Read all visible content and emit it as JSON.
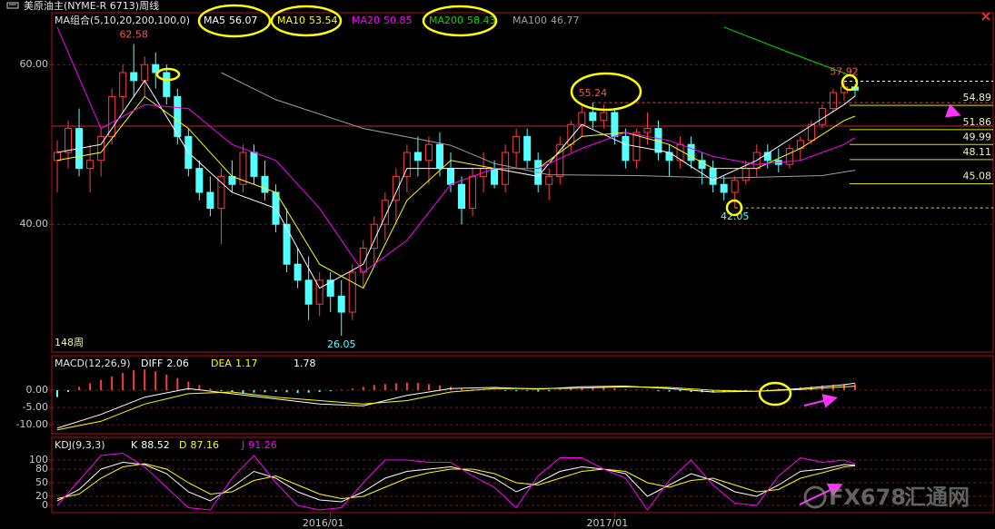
{
  "header": {
    "title": "美原油主(NYME-R 6713)周线"
  },
  "watermark": [
    "FX678",
    "汇通网"
  ],
  "chart_data": [
    {
      "type": "candlestick",
      "legend_title": "MA组合(5,10,20,200,100,0)",
      "period_label": "148周",
      "up_color": "#ff3c3c",
      "down_color": "#54ffff",
      "grid": true,
      "xlim": [
        -0.5,
        73.5
      ],
      "xticks": [
        {
          "value": 25,
          "label": "2016/01"
        },
        {
          "value": 51,
          "label": "2017/01"
        }
      ],
      "ylim": [
        24,
        66.5
      ],
      "yticks": [
        {
          "value": 60,
          "label": "60.00"
        },
        {
          "value": 40,
          "label": "40.00"
        }
      ],
      "candles": [
        [
          48,
          50.5,
          44,
          49
        ],
        [
          49,
          53,
          47,
          52
        ],
        [
          52,
          54.5,
          46,
          47
        ],
        [
          47,
          50,
          44,
          48
        ],
        [
          48,
          52,
          46,
          51
        ],
        [
          51,
          57,
          50,
          56
        ],
        [
          56,
          60,
          54,
          59
        ],
        [
          59,
          62.58,
          56,
          58
        ],
        [
          58,
          61,
          56,
          60
        ],
        [
          60,
          61.5,
          57,
          59
        ],
        [
          59,
          60,
          55,
          56
        ],
        [
          56,
          57,
          50,
          51
        ],
        [
          51,
          52,
          46,
          47
        ],
        [
          47,
          48,
          43,
          44
        ],
        [
          44,
          46,
          41,
          42
        ],
        [
          42,
          47,
          37.5,
          46
        ],
        [
          46,
          48,
          44,
          45
        ],
        [
          45,
          50,
          44,
          49
        ],
        [
          49,
          50,
          45,
          46
        ],
        [
          46,
          48,
          43,
          44
        ],
        [
          44,
          45,
          39,
          40
        ],
        [
          40,
          42,
          34,
          35
        ],
        [
          35,
          37,
          32,
          33
        ],
        [
          33,
          36,
          28,
          30
        ],
        [
          30,
          34,
          28.5,
          33
        ],
        [
          33,
          34,
          29,
          31
        ],
        [
          31,
          33,
          26.05,
          29
        ],
        [
          29,
          35,
          28,
          34
        ],
        [
          34,
          38,
          32,
          37
        ],
        [
          37,
          41,
          35,
          40
        ],
        [
          40,
          44,
          38,
          43
        ],
        [
          43,
          47,
          40,
          46
        ],
        [
          46,
          50,
          44,
          49
        ],
        [
          49,
          51,
          46,
          48
        ],
        [
          48,
          51,
          45,
          50
        ],
        [
          50,
          51.5,
          46,
          47
        ],
        [
          47,
          49,
          44,
          45
        ],
        [
          45,
          46,
          40,
          42
        ],
        [
          42,
          47,
          41,
          46
        ],
        [
          46,
          49,
          44,
          47
        ],
        [
          47,
          48,
          44.5,
          45
        ],
        [
          45,
          50,
          44,
          49
        ],
        [
          49,
          52,
          47,
          51
        ],
        [
          51,
          52,
          47,
          48
        ],
        [
          48,
          49,
          44,
          45
        ],
        [
          45,
          47,
          43,
          46
        ],
        [
          46,
          51,
          45,
          50
        ],
        [
          50,
          53,
          49,
          52.5
        ],
        [
          52.5,
          55,
          51,
          54
        ],
        [
          54,
          55.24,
          52,
          53
        ],
        [
          53,
          55,
          52,
          54
        ],
        [
          54,
          54.5,
          50,
          51
        ],
        [
          51,
          52,
          47,
          48
        ],
        [
          48,
          52,
          47,
          51.5
        ],
        [
          51.5,
          54,
          50,
          52
        ],
        [
          52,
          53,
          48,
          49
        ],
        [
          49,
          50,
          46,
          48
        ],
        [
          48,
          51,
          47,
          50
        ],
        [
          50,
          51,
          47,
          48
        ],
        [
          48,
          49,
          45,
          47
        ],
        [
          47,
          48,
          44,
          45
        ],
        [
          45,
          46,
          43,
          44
        ],
        [
          44,
          46,
          42.05,
          45.5
        ],
        [
          45.5,
          48,
          45,
          47
        ],
        [
          47,
          50,
          46,
          49
        ],
        [
          49,
          50,
          47,
          48
        ],
        [
          48,
          49.5,
          46.5,
          47.5
        ],
        [
          47.5,
          50,
          47,
          49.5
        ],
        [
          49.5,
          51,
          48,
          50.5
        ],
        [
          50.5,
          53,
          50,
          52.5
        ],
        [
          52.5,
          55,
          52,
          54.5
        ],
        [
          54.5,
          57,
          54,
          56.5
        ],
        [
          56.5,
          57.92,
          55.5,
          57.2
        ],
        [
          57.2,
          57.5,
          56,
          56.8
        ]
      ],
      "series": [
        {
          "name": "MA5",
          "value": 56.07,
          "color": "#ffffff",
          "x": [
            0,
            4,
            8,
            12,
            16,
            20,
            24,
            28,
            32,
            36,
            40,
            44,
            48,
            52,
            56,
            60,
            64,
            68,
            72,
            73
          ],
          "values": [
            49,
            50,
            58,
            49,
            44,
            42,
            32,
            35,
            47,
            47,
            47,
            46,
            52.5,
            50,
            49,
            45.5,
            48,
            51.5,
            55,
            56.07
          ]
        },
        {
          "name": "MA10",
          "value": 53.54,
          "color": "#ffff00",
          "x": [
            0,
            4,
            8,
            12,
            16,
            20,
            24,
            28,
            32,
            36,
            40,
            44,
            48,
            52,
            56,
            60,
            64,
            68,
            72,
            73
          ],
          "values": [
            48,
            49,
            56,
            52,
            46,
            44,
            35,
            32,
            43,
            48,
            47,
            47,
            51,
            51.5,
            50,
            47,
            47,
            49.5,
            53,
            53.54
          ]
        },
        {
          "name": "MA20",
          "value": 50.85,
          "color": "#ff00ff",
          "x": [
            0,
            4,
            8,
            12,
            16,
            20,
            24,
            28,
            32,
            36,
            40,
            44,
            48,
            52,
            56,
            60,
            64,
            68,
            72,
            73
          ],
          "values": [
            64.7,
            52,
            55,
            54.5,
            50,
            48,
            42,
            34,
            38,
            45,
            47,
            47,
            49.5,
            51.5,
            50.5,
            48.5,
            47.5,
            48,
            50,
            50.85
          ]
        },
        {
          "name": "MA200",
          "value": 58.43,
          "color": "#00dd00",
          "x": [
            61,
            67,
            73
          ],
          "values": [
            64.7,
            61.5,
            58.43
          ]
        },
        {
          "name": "MA100",
          "value": 46.77,
          "color": "#a0a0a0",
          "x": [
            15,
            20,
            28,
            36,
            40,
            45,
            53,
            61,
            70,
            73
          ],
          "values": [
            59,
            55.6,
            52,
            49.9,
            47.6,
            46.2,
            46.1,
            45.8,
            46.1,
            46.77
          ]
        }
      ],
      "annotations": [
        {
          "x": 7,
          "value": 62.58
        },
        {
          "x": 26,
          "value": 26.05
        },
        {
          "x": 49,
          "value": 55.24,
          "extend": true,
          "line_color": "#ff3c3c"
        },
        {
          "x": 62,
          "value": 42.05,
          "extend": true,
          "line_color": "#e0e000"
        },
        {
          "x": 72,
          "value": 57.92,
          "extend": true,
          "line_color": "#ffffff"
        }
      ],
      "levels": [
        54.89,
        51.86,
        49.99,
        48.11,
        45.08
      ],
      "level_color": "#e0e000",
      "hlines": [
        {
          "value": 52.3,
          "color": "#c82828"
        }
      ]
    },
    {
      "type": "macd",
      "legend_title": "MACD(12,26,9)",
      "macd_value": 1.78,
      "grid": true,
      "up_color": "#ff3c3c",
      "down_color": "#54ffff",
      "xlim": [
        -0.5,
        73.5
      ],
      "ylim": [
        -12.6,
        10
      ],
      "yticks": [
        {
          "value": 0,
          "label": "0.00"
        },
        {
          "value": -5,
          "label": "-5.00"
        },
        {
          "value": -10,
          "label": "-10.00"
        }
      ],
      "histogram": [
        -2,
        -0.5,
        1,
        2,
        3,
        4,
        5,
        5.8,
        6,
        5.5,
        4.5,
        3.5,
        2.5,
        1.5,
        0.5,
        -0.3,
        -0.6,
        -0.8,
        -0.7,
        -0.6,
        -0.5,
        -0.6,
        -0.8,
        -0.7,
        -0.5,
        -0.3,
        0.2,
        0.5,
        1,
        1.5,
        1.8,
        2,
        2.2,
        2.1,
        1.8,
        1.4,
        1,
        0.6,
        0.3,
        0.2,
        0.1,
        -0.2,
        -0.3,
        -0.2,
        -0.4,
        -0.3,
        0.3,
        0.6,
        0.8,
        0.9,
        0.8,
        0.6,
        0.3,
        0.2,
        0.1,
        -0.3,
        -0.4,
        -0.3,
        -0.5,
        -0.6,
        -0.7,
        -0.6,
        -0.4,
        -0.2,
        0.1,
        0.3,
        0.5,
        0.7,
        0.9,
        1.1,
        1.4,
        1.6,
        1.8,
        1.78
      ],
      "series": [
        {
          "name": "DIFF",
          "value": 2.06,
          "color": "#ffffff",
          "x": [
            0,
            4,
            8,
            12,
            16,
            20,
            24,
            28,
            32,
            36,
            40,
            44,
            48,
            52,
            56,
            60,
            64,
            68,
            72,
            73
          ],
          "values": [
            -11,
            -7,
            -2,
            0.5,
            -1,
            -2.5,
            -4,
            -4.5,
            -1.5,
            0.5,
            0.8,
            0.3,
            1,
            1.2,
            0.5,
            -0.5,
            -0.3,
            0.5,
            1.6,
            2.06
          ]
        },
        {
          "name": "DEA",
          "value": 1.17,
          "color": "#ffff00",
          "x": [
            0,
            4,
            8,
            12,
            16,
            20,
            24,
            28,
            32,
            36,
            40,
            44,
            48,
            52,
            56,
            60,
            64,
            68,
            72,
            73
          ],
          "values": [
            -11.5,
            -9,
            -4,
            -1,
            -0.5,
            -2,
            -3,
            -4,
            -3,
            -0.5,
            0.5,
            0.5,
            0.6,
            1,
            0.8,
            0,
            -0.3,
            0.2,
            1,
            1.17
          ]
        }
      ]
    },
    {
      "type": "kdj",
      "legend_title": "KDJ(9,3,3)",
      "grid": true,
      "xlim": [
        -0.5,
        73.5
      ],
      "ylim": [
        -16,
        150
      ],
      "yticks": [
        100,
        80,
        50,
        20,
        0
      ],
      "series": [
        {
          "name": "K",
          "value": 88.52,
          "color": "#ffffff",
          "x": [
            0,
            2,
            4,
            6,
            8,
            10,
            12,
            14,
            16,
            18,
            20,
            22,
            24,
            26,
            28,
            30,
            32,
            34,
            36,
            38,
            40,
            42,
            44,
            46,
            48,
            50,
            52,
            54,
            56,
            58,
            60,
            62,
            64,
            66,
            68,
            70,
            72,
            73
          ],
          "values": [
            10,
            35,
            80,
            95,
            90,
            70,
            30,
            10,
            40,
            75,
            60,
            30,
            12,
            8,
            30,
            60,
            75,
            80,
            85,
            75,
            60,
            30,
            50,
            75,
            85,
            80,
            70,
            20,
            45,
            70,
            55,
            30,
            20,
            45,
            75,
            80,
            90,
            88.52
          ]
        },
        {
          "name": "D",
          "value": 87.16,
          "color": "#ffff00",
          "x": [
            0,
            2,
            4,
            6,
            8,
            10,
            12,
            14,
            16,
            18,
            20,
            22,
            24,
            26,
            28,
            30,
            32,
            34,
            36,
            38,
            40,
            42,
            44,
            46,
            48,
            50,
            52,
            54,
            56,
            58,
            60,
            62,
            64,
            66,
            68,
            70,
            72,
            73
          ],
          "values": [
            15,
            25,
            60,
            85,
            92,
            80,
            50,
            25,
            30,
            55,
            65,
            45,
            25,
            15,
            20,
            40,
            60,
            72,
            80,
            80,
            70,
            50,
            45,
            60,
            75,
            80,
            75,
            50,
            40,
            55,
            60,
            45,
            30,
            35,
            60,
            72,
            85,
            87.16
          ]
        },
        {
          "name": "J",
          "value": 91.26,
          "color": "#ff00ff",
          "x": [
            0,
            2,
            4,
            6,
            8,
            10,
            12,
            14,
            16,
            18,
            20,
            22,
            24,
            26,
            28,
            30,
            32,
            34,
            36,
            38,
            40,
            42,
            44,
            46,
            48,
            50,
            52,
            54,
            56,
            58,
            60,
            62,
            64,
            66,
            68,
            70,
            72,
            73
          ],
          "values": [
            0,
            55,
            110,
            115,
            85,
            40,
            -5,
            -10,
            60,
            110,
            50,
            0,
            -10,
            -5,
            50,
            100,
            100,
            95,
            95,
            65,
            40,
            -5,
            65,
            105,
            105,
            80,
            60,
            -10,
            55,
            100,
            45,
            5,
            0,
            65,
            105,
            95,
            100,
            91.26
          ]
        }
      ]
    }
  ]
}
